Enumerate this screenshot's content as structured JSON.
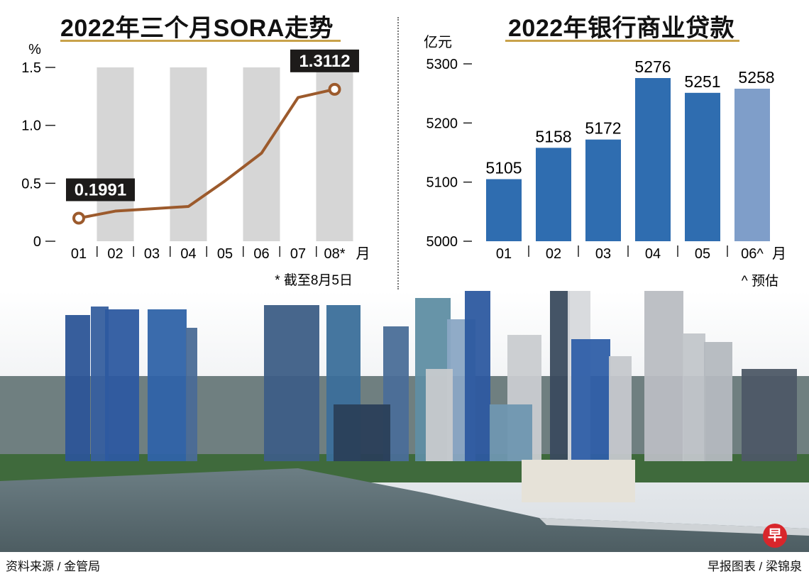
{
  "left_title": "2022年三个月SORA走势",
  "right_title": "2022年银行商业贷款",
  "left_note": "* 截至8月5日",
  "right_note": "^ 预估",
  "source": "资料来源 / 金管局",
  "credit": "早报图表 / 梁锦泉",
  "logo_char": "早",
  "colors": {
    "title_rule": "#c8a24a",
    "sora_line": "#9c5a2c",
    "bar_blue": "#2f6db0",
    "bar_estimate": "#7f9ec9",
    "grey_bar": "#d6d6d6"
  },
  "chart_data": [
    {
      "type": "line",
      "title": "2022年三个月SORA走势",
      "ylabel": "%",
      "xlabel_unit": "月",
      "ylim": [
        0,
        1.5
      ],
      "yticks": [
        0,
        0.5,
        1.0,
        1.5
      ],
      "ytick_labels": [
        "0",
        "0.5",
        "1.0",
        "1.5"
      ],
      "categories": [
        "01",
        "02",
        "03",
        "04",
        "05",
        "06",
        "07",
        "08*"
      ],
      "background_bars": [
        "02",
        "04",
        "06",
        "08*"
      ],
      "series": [
        {
          "values": [
            0.1991,
            0.26,
            0.28,
            0.3,
            0.52,
            0.76,
            1.24,
            1.3112
          ]
        }
      ],
      "labels": [
        {
          "category": "01",
          "text": "0.1991"
        },
        {
          "category": "08*",
          "text": "1.3112"
        }
      ]
    },
    {
      "type": "bar",
      "title": "2022年银行商业贷款",
      "ylabel": "亿元",
      "xlabel_unit": "月",
      "ylim": [
        5000,
        5300
      ],
      "yticks": [
        5000,
        5100,
        5200,
        5300
      ],
      "categories": [
        "01",
        "02",
        "03",
        "04",
        "05",
        "06^"
      ],
      "values": [
        5105,
        5158,
        5172,
        5276,
        5251,
        5258
      ],
      "estimated": [
        false,
        false,
        false,
        false,
        false,
        true
      ],
      "grid": false
    }
  ]
}
